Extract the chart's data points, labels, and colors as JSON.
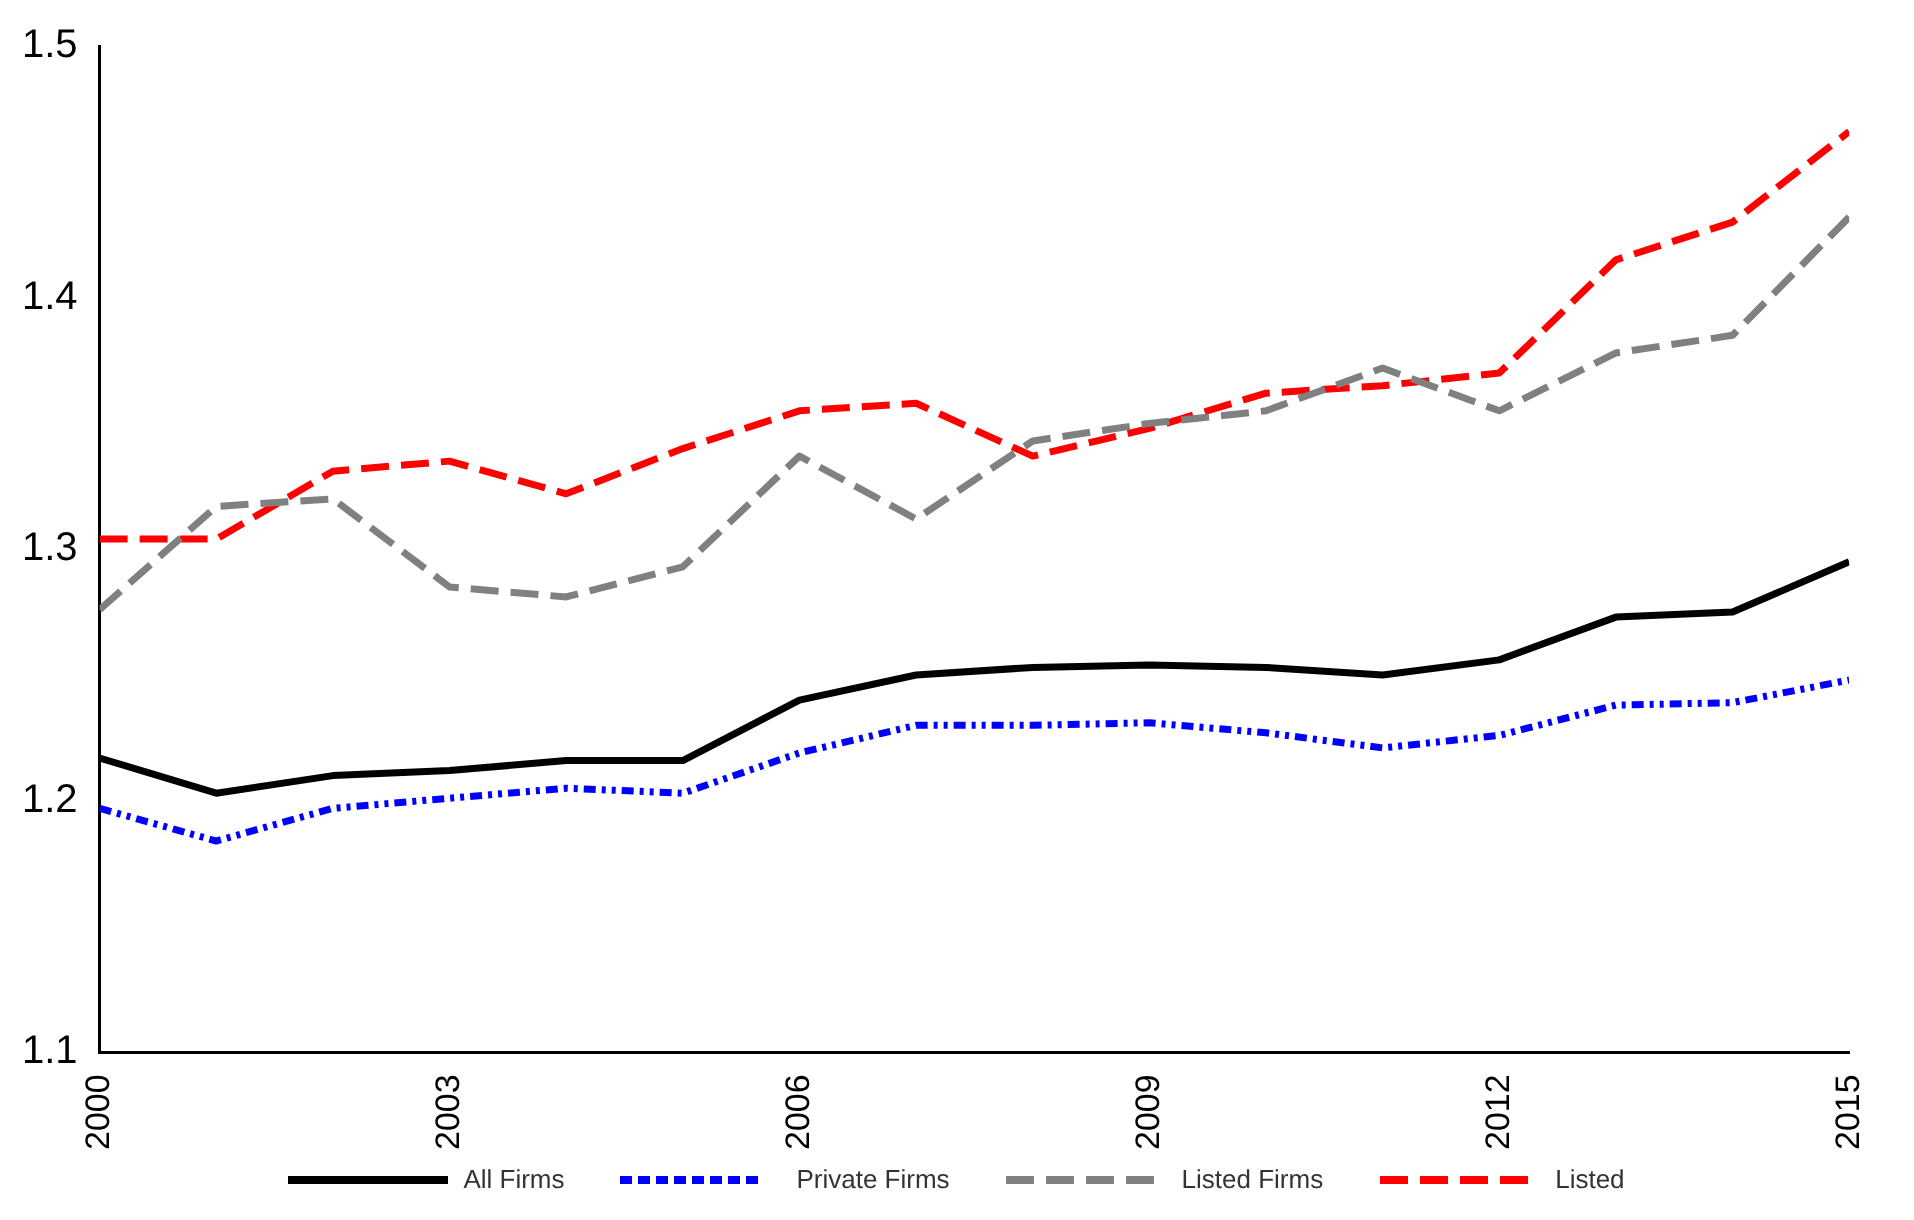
{
  "chart_data": {
    "type": "line",
    "x": [
      2000,
      2001,
      2002,
      2003,
      2004,
      2005,
      2006,
      2007,
      2008,
      2009,
      2010,
      2011,
      2012,
      2013,
      2014,
      2015
    ],
    "series": [
      {
        "name": "All Firms",
        "color": "#000000",
        "line_style": "solid",
        "values": [
          1.217,
          1.203,
          1.21,
          1.212,
          1.216,
          1.216,
          1.24,
          1.25,
          1.253,
          1.254,
          1.253,
          1.25,
          1.256,
          1.273,
          1.275,
          1.295
        ]
      },
      {
        "name": "Private Firms",
        "color": "#0000ff",
        "line_style": "dotted",
        "values": [
          1.197,
          1.184,
          1.197,
          1.201,
          1.205,
          1.203,
          1.219,
          1.23,
          1.23,
          1.231,
          1.227,
          1.221,
          1.226,
          1.238,
          1.239,
          1.248
        ]
      },
      {
        "name": "Listed Firms",
        "color": "#808080",
        "line_style": "dashed",
        "values": [
          1.276,
          1.317,
          1.32,
          1.285,
          1.281,
          1.293,
          1.337,
          1.312,
          1.343,
          1.35,
          1.355,
          1.372,
          1.355,
          1.378,
          1.385,
          1.432
        ]
      },
      {
        "name": "Listed",
        "color": "#ff0000",
        "line_style": "dashed",
        "values": [
          1.304,
          1.304,
          1.331,
          1.335,
          1.322,
          1.34,
          1.355,
          1.358,
          1.337,
          1.348,
          1.362,
          1.365,
          1.37,
          1.415,
          1.43,
          1.466
        ]
      }
    ],
    "xlim": [
      2000,
      2015
    ],
    "xticks": [
      2000,
      2003,
      2006,
      2009,
      2012,
      2015
    ],
    "ylim": [
      1.1,
      1.5
    ],
    "yticks": [
      1.1,
      1.2,
      1.3,
      1.4,
      1.5
    ],
    "grid": false,
    "legend": "bottom",
    "marker": "none"
  }
}
